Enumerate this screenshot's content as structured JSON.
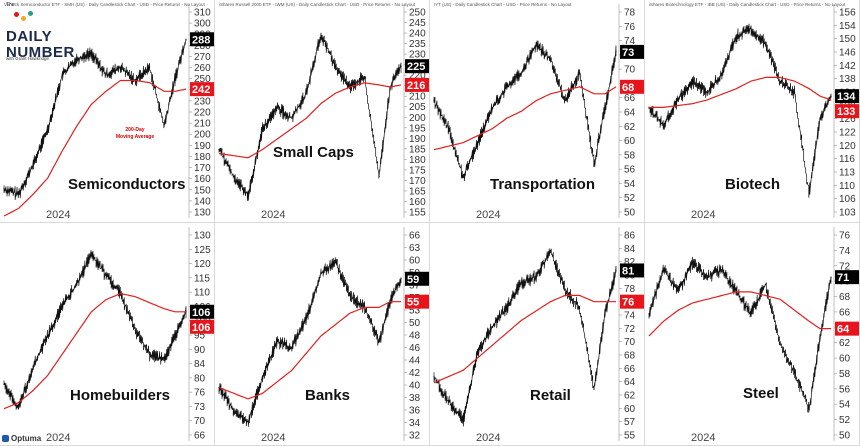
{
  "logo": {
    "the": "The",
    "daily": "DAILY",
    "number": "NUMBER",
    "byline": "with Grant Hawkridge"
  },
  "annotation": {
    "line1": "200-Day",
    "line2": "Moving Average"
  },
  "footer": {
    "brand": "Optuma"
  },
  "colors": {
    "price": "#111111",
    "ma": "#e02020",
    "price_tag": "#000000",
    "ma_tag": "#e8141c"
  },
  "panels": [
    {
      "name": "Semiconductors",
      "header": "VanEck Semiconductor ETF - SMH (US) - Daily Candlestick Chart - USD - Price Returns - No Layout",
      "year": "2024",
      "ticks": [
        "310",
        "300",
        "290",
        "280",
        "270",
        "260",
        "250",
        "240",
        "230",
        "220",
        "210",
        "200",
        "190",
        "180",
        "170",
        "160",
        "150",
        "140",
        "130"
      ],
      "price_tag": "288",
      "ma_tag": "242"
    },
    {
      "name": "Small Caps",
      "header": "iShares Russell 2000 ETF - IWM (US) - Daily Candlestick Chart - USD - Price Returns - No Layout",
      "year": "2024",
      "ticks": [
        "250",
        "245",
        "240",
        "235",
        "230",
        "225",
        "220",
        "215",
        "210",
        "205",
        "200",
        "195",
        "190",
        "185",
        "180",
        "175",
        "170",
        "165",
        "160",
        "155"
      ],
      "price_tag": "225",
      "ma_tag": "216"
    },
    {
      "name": "Transportation",
      "header": "IYT (US) - Daily Candlestick Chart - USD - Price Returns - No Layout",
      "year": "2024",
      "ticks": [
        "78",
        "76",
        "74",
        "72",
        "70",
        "68",
        "66",
        "64",
        "62",
        "60",
        "58",
        "56",
        "54",
        "52",
        "50"
      ],
      "price_tag": "73",
      "ma_tag": "68"
    },
    {
      "name": "Biotech",
      "header": "iShares Biotechnology ETF - IBB (US) - Daily Candlestick Chart - USD - Price Returns - No Layout",
      "year": "2024",
      "ticks": [
        "156",
        "154",
        "150",
        "146",
        "142",
        "138",
        "134",
        "130",
        "126",
        "122",
        "120",
        "116",
        "113",
        "110",
        "106",
        "103"
      ],
      "price_tag": "134",
      "ma_tag": "133"
    },
    {
      "name": "Homebuilders",
      "header": "",
      "year": "2024",
      "ticks": [
        "130",
        "125",
        "120",
        "115",
        "110",
        "106",
        "100",
        "95",
        "90",
        "84",
        "80",
        "76",
        "73",
        "70",
        "66"
      ],
      "price_tag": "106",
      "ma_tag": "106"
    },
    {
      "name": "Banks",
      "header": "",
      "year": "2024",
      "ticks": [
        "66",
        "63",
        "60",
        "59",
        "57",
        "55",
        "53",
        "50",
        "48",
        "46",
        "44",
        "42",
        "40",
        "38",
        "36",
        "34",
        "32"
      ],
      "price_tag": "59",
      "ma_tag": "55"
    },
    {
      "name": "Retail",
      "header": "",
      "year": "2024",
      "ticks": [
        "86",
        "84",
        "82",
        "80",
        "78",
        "76",
        "74",
        "72",
        "70",
        "68",
        "66",
        "64",
        "62",
        "60",
        "57",
        "55"
      ],
      "price_tag": "81",
      "ma_tag": "76"
    },
    {
      "name": "Steel",
      "header": "",
      "year": "2024",
      "ticks": [
        "76",
        "74",
        "72",
        "70",
        "68",
        "66",
        "64",
        "62",
        "60",
        "58",
        "56",
        "54",
        "52",
        "50"
      ],
      "price_tag": "71",
      "ma_tag": "64"
    }
  ],
  "chart_data": [
    {
      "type": "line",
      "title": "Semiconductors",
      "ylim": [
        125,
        315
      ],
      "x": [
        0,
        0.08,
        0.16,
        0.24,
        0.32,
        0.4,
        0.48,
        0.56,
        0.64,
        0.72,
        0.8,
        0.88,
        0.94,
        1.0
      ],
      "series": [
        {
          "values": [
            150,
            145,
            172,
            205,
            255,
            270,
            275,
            255,
            262,
            250,
            262,
            208,
            252,
            288
          ]
        },
        {
          "values": [
            125,
            132,
            145,
            160,
            185,
            208,
            228,
            240,
            250,
            250,
            248,
            240,
            240,
            242
          ]
        }
      ]
    },
    {
      "type": "line",
      "title": "Small Caps",
      "ylim": [
        153,
        252
      ],
      "x": [
        0,
        0.08,
        0.16,
        0.24,
        0.32,
        0.4,
        0.48,
        0.56,
        0.64,
        0.72,
        0.8,
        0.88,
        0.94,
        1.0
      ],
      "series": [
        {
          "values": [
            185,
            172,
            163,
            195,
            205,
            200,
            212,
            240,
            225,
            215,
            220,
            172,
            215,
            225
          ]
        },
        {
          "values": [
            183,
            182,
            181,
            185,
            190,
            195,
            200,
            207,
            212,
            215,
            217,
            216,
            215,
            216
          ]
        }
      ]
    },
    {
      "type": "line",
      "title": "Transportation",
      "ylim": [
        49.5,
        79
      ],
      "x": [
        0,
        0.08,
        0.16,
        0.24,
        0.32,
        0.4,
        0.48,
        0.56,
        0.64,
        0.72,
        0.8,
        0.88,
        0.94,
        1.0
      ],
      "series": [
        {
          "values": [
            66,
            62,
            55,
            60,
            65,
            68,
            70,
            74,
            72,
            66,
            70,
            57,
            65,
            73
          ]
        },
        {
          "values": [
            59,
            59.5,
            60,
            61,
            62,
            63.5,
            64.5,
            66,
            67,
            67.5,
            68,
            67,
            67,
            68
          ]
        }
      ]
    },
    {
      "type": "line",
      "title": "Biotech",
      "ylim": [
        102,
        157
      ],
      "x": [
        0,
        0.08,
        0.16,
        0.24,
        0.32,
        0.4,
        0.48,
        0.56,
        0.64,
        0.72,
        0.8,
        0.88,
        0.94,
        1.0
      ],
      "series": [
        {
          "values": [
            131,
            126,
            133,
            138,
            135,
            140,
            150,
            152,
            148,
            138,
            135,
            108,
            128,
            134
          ]
        },
        {
          "values": [
            131,
            131,
            131.5,
            132,
            133,
            134.5,
            136,
            138,
            139,
            139,
            138,
            136,
            134,
            133
          ]
        }
      ]
    },
    {
      "type": "line",
      "title": "Homebuilders",
      "ylim": [
        64,
        132
      ],
      "x": [
        0,
        0.08,
        0.16,
        0.24,
        0.32,
        0.4,
        0.48,
        0.56,
        0.64,
        0.72,
        0.8,
        0.88,
        0.94,
        1.0
      ],
      "series": [
        {
          "values": [
            82,
            74,
            88,
            98,
            108,
            115,
            125,
            118,
            112,
            100,
            92,
            90,
            98,
            106
          ]
        },
        {
          "values": [
            74,
            76,
            80,
            85,
            92,
            99,
            106,
            110,
            112,
            111,
            109,
            107,
            106,
            106
          ]
        }
      ]
    },
    {
      "type": "line",
      "title": "Banks",
      "ylim": [
        31,
        67
      ],
      "x": [
        0,
        0.08,
        0.16,
        0.24,
        0.32,
        0.4,
        0.48,
        0.56,
        0.64,
        0.72,
        0.8,
        0.88,
        0.94,
        1.0
      ],
      "series": [
        {
          "values": [
            40,
            36,
            34,
            42,
            48,
            47,
            52,
            60,
            62,
            56,
            54,
            48,
            55,
            59
          ]
        },
        {
          "values": [
            40,
            39,
            38,
            39,
            41,
            43,
            46,
            49,
            51,
            53,
            54,
            54,
            55,
            55
          ]
        }
      ]
    },
    {
      "type": "line",
      "title": "Retail",
      "ylim": [
        54,
        87
      ],
      "x": [
        0,
        0.08,
        0.16,
        0.24,
        0.32,
        0.4,
        0.48,
        0.56,
        0.64,
        0.72,
        0.8,
        0.88,
        0.94,
        1.0
      ],
      "series": [
        {
          "values": [
            64,
            60,
            57,
            68,
            72,
            75,
            79,
            80,
            84,
            78,
            75,
            62,
            74,
            81
          ]
        },
        {
          "values": [
            63,
            64,
            65,
            67,
            69,
            71,
            73,
            74.5,
            76,
            77,
            77,
            76,
            76,
            76
          ]
        }
      ]
    },
    {
      "type": "line",
      "title": "Steel",
      "ylim": [
        49,
        77
      ],
      "x": [
        0,
        0.08,
        0.16,
        0.24,
        0.32,
        0.4,
        0.48,
        0.56,
        0.64,
        0.72,
        0.8,
        0.88,
        0.94,
        1.0
      ],
      "series": [
        {
          "values": [
            66,
            72,
            69,
            73,
            71,
            72,
            69,
            66,
            70,
            62,
            58,
            53,
            63,
            71
          ]
        },
        {
          "values": [
            63,
            65,
            66.5,
            67.5,
            68,
            68.5,
            69,
            69,
            68.5,
            68,
            66.5,
            65,
            64,
            64
          ]
        }
      ]
    }
  ]
}
